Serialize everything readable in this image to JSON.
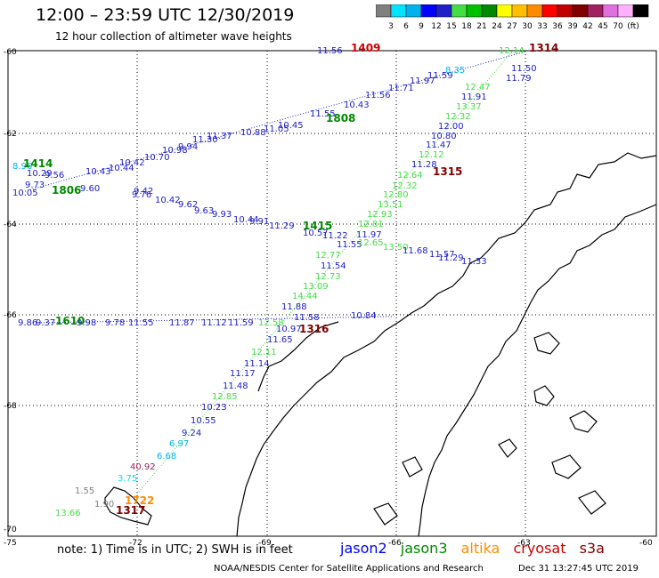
{
  "title": "12:00 – 23:59 UTC 12/30/2019",
  "subtitle": "12 hour collection of altimeter wave heights",
  "colorbar": {
    "colors": [
      "#808080",
      "#00e5ff",
      "#00b2ee",
      "#0000ff",
      "#2020c8",
      "#44dd44",
      "#00c000",
      "#008800",
      "#ffff00",
      "#ffc000",
      "#ff8c00",
      "#ff0000",
      "#c00000",
      "#800000",
      "#a02060",
      "#e070e0",
      "#ffb0ff",
      "#000000"
    ],
    "labels": [
      "3",
      "6",
      "9",
      "12",
      "15",
      "18",
      "21",
      "24",
      "27",
      "30",
      "33",
      "36",
      "39",
      "42",
      "45",
      "70",
      "(ft)"
    ]
  },
  "axes": {
    "y_ticks": [
      "-60",
      "-62",
      "-64",
      "-66",
      "-68",
      "-70"
    ],
    "x_ticks": [
      "-75",
      "-72",
      "-69",
      "-66",
      "-63",
      "-60"
    ]
  },
  "time_labels": [
    {
      "text": "1409",
      "color": "#cc0000"
    },
    {
      "text": "1314",
      "color": "#800000"
    },
    {
      "text": "1808",
      "color": "#008800"
    },
    {
      "text": "1414",
      "color": "#008800"
    },
    {
      "text": "1806",
      "color": "#008800"
    },
    {
      "text": "1315",
      "color": "#800000"
    },
    {
      "text": "1415",
      "color": "#008800"
    },
    {
      "text": "1610",
      "color": "#008800"
    },
    {
      "text": "1316",
      "color": "#800000"
    },
    {
      "text": "1722",
      "color": "#ff8c00"
    },
    {
      "text": "1317",
      "color": "#800000"
    }
  ],
  "wave_labels": [
    {
      "text": "11.56",
      "color": "#2020c8"
    },
    {
      "text": "12.14",
      "color": "#44dd44"
    },
    {
      "text": "11.50",
      "color": "#2020c8"
    },
    {
      "text": "11.79",
      "color": "#2020c8"
    },
    {
      "text": "12.47",
      "color": "#44dd44"
    },
    {
      "text": "11.91",
      "color": "#2020c8"
    },
    {
      "text": "13.37",
      "color": "#44dd44"
    },
    {
      "text": "12.32",
      "color": "#44dd44"
    },
    {
      "text": "12.00",
      "color": "#2020c8"
    },
    {
      "text": "10.80",
      "color": "#2020c8"
    },
    {
      "text": "11.47",
      "color": "#2020c8"
    },
    {
      "text": "12.12",
      "color": "#44dd44"
    },
    {
      "text": "11.28",
      "color": "#2020c8"
    },
    {
      "text": "12.64",
      "color": "#44dd44"
    },
    {
      "text": "12.32",
      "color": "#44dd44"
    },
    {
      "text": "12.80",
      "color": "#44dd44"
    },
    {
      "text": "13.51",
      "color": "#44dd44"
    },
    {
      "text": "12.93",
      "color": "#44dd44"
    },
    {
      "text": "12.81",
      "color": "#44dd44"
    },
    {
      "text": "11.97",
      "color": "#2020c8"
    },
    {
      "text": "11.55",
      "color": "#2020c8"
    },
    {
      "text": "12.65",
      "color": "#44dd44"
    },
    {
      "text": "13.50",
      "color": "#44dd44"
    },
    {
      "text": "11.68",
      "color": "#2020c8"
    },
    {
      "text": "11.57",
      "color": "#2020c8"
    },
    {
      "text": "11.29",
      "color": "#2020c8"
    },
    {
      "text": "11.33",
      "color": "#2020c8"
    },
    {
      "text": "12.77",
      "color": "#44dd44"
    },
    {
      "text": "11.54",
      "color": "#2020c8"
    },
    {
      "text": "12.73",
      "color": "#44dd44"
    },
    {
      "text": "13.09",
      "color": "#44dd44"
    },
    {
      "text": "14.44",
      "color": "#44dd44"
    },
    {
      "text": "11.88",
      "color": "#2020c8"
    },
    {
      "text": "10.97",
      "color": "#2020c8"
    },
    {
      "text": "11.65",
      "color": "#2020c8"
    },
    {
      "text": "12.11",
      "color": "#44dd44"
    },
    {
      "text": "11.14",
      "color": "#2020c8"
    },
    {
      "text": "11.17",
      "color": "#2020c8"
    },
    {
      "text": "11.48",
      "color": "#2020c8"
    },
    {
      "text": "12.85",
      "color": "#44dd44"
    },
    {
      "text": "10.23",
      "color": "#2020c8"
    },
    {
      "text": "10.55",
      "color": "#2020c8"
    },
    {
      "text": "9.24",
      "color": "#2020c8"
    },
    {
      "text": "6.97",
      "color": "#00b2ee"
    },
    {
      "text": "6.68",
      "color": "#00b2ee"
    },
    {
      "text": "40.92",
      "color": "#a02060"
    },
    {
      "text": "3.75",
      "color": "#00e5ff"
    },
    {
      "text": "1.55",
      "color": "#808080"
    },
    {
      "text": "1.90",
      "color": "#808080"
    },
    {
      "text": "13.66",
      "color": "#44dd44"
    },
    {
      "text": "8.96",
      "color": "#00b2ee"
    },
    {
      "text": "10.05",
      "color": "#2020c8"
    },
    {
      "text": "10.29",
      "color": "#2020c8"
    },
    {
      "text": "9.56",
      "color": "#2020c8"
    },
    {
      "text": "9.73",
      "color": "#2020c8"
    },
    {
      "text": "9.60",
      "color": "#2020c8"
    },
    {
      "text": "10.43",
      "color": "#2020c8"
    },
    {
      "text": "10.44",
      "color": "#2020c8"
    },
    {
      "text": "10.42",
      "color": "#2020c8"
    },
    {
      "text": "9.42",
      "color": "#2020c8"
    },
    {
      "text": "10.70",
      "color": "#2020c8"
    },
    {
      "text": "10.98",
      "color": "#2020c8"
    },
    {
      "text": "9.94",
      "color": "#2020c8"
    },
    {
      "text": "11.30",
      "color": "#2020c8"
    },
    {
      "text": "11.37",
      "color": "#2020c8"
    },
    {
      "text": "10.88",
      "color": "#2020c8"
    },
    {
      "text": "11.05",
      "color": "#2020c8"
    },
    {
      "text": "10.45",
      "color": "#2020c8"
    },
    {
      "text": "9.76",
      "color": "#2020c8"
    },
    {
      "text": "10.42",
      "color": "#2020c8"
    },
    {
      "text": "9.62",
      "color": "#2020c8"
    },
    {
      "text": "9.63",
      "color": "#2020c8"
    },
    {
      "text": "9.93",
      "color": "#2020c8"
    },
    {
      "text": "10.44",
      "color": "#2020c8"
    },
    {
      "text": "9.91",
      "color": "#2020c8"
    },
    {
      "text": "11.29",
      "color": "#2020c8"
    },
    {
      "text": "10.57",
      "color": "#2020c8"
    },
    {
      "text": "11.22",
      "color": "#2020c8"
    },
    {
      "text": "11.55",
      "color": "#2020c8"
    },
    {
      "text": "10.43",
      "color": "#2020c8"
    },
    {
      "text": "11.56",
      "color": "#2020c8"
    },
    {
      "text": "11.71",
      "color": "#2020c8"
    },
    {
      "text": "11.97",
      "color": "#2020c8"
    },
    {
      "text": "11.59",
      "color": "#2020c8"
    },
    {
      "text": "8.35",
      "color": "#00b2ee"
    },
    {
      "text": "9.86",
      "color": "#2020c8"
    },
    {
      "text": "9.37",
      "color": "#2020c8"
    },
    {
      "text": "9.98",
      "color": "#2020c8"
    },
    {
      "text": "9.78",
      "color": "#2020c8"
    },
    {
      "text": "11.55",
      "color": "#2020c8"
    },
    {
      "text": "11.87",
      "color": "#2020c8"
    },
    {
      "text": "11.12",
      "color": "#2020c8"
    },
    {
      "text": "11.59",
      "color": "#2020c8"
    },
    {
      "text": "12.58",
      "color": "#44dd44"
    },
    {
      "text": "11.58",
      "color": "#2020c8"
    },
    {
      "text": "10.84",
      "color": "#2020c8"
    }
  ],
  "note": "note:  1) Time is in UTC;  2) SWH is in feet",
  "sources": [
    {
      "text": "jason2",
      "color": "#0000ff"
    },
    {
      "text": "jason3",
      "color": "#008800"
    },
    {
      "text": "altika",
      "color": "#ff8c00"
    },
    {
      "text": "cryosat",
      "color": "#cc0000"
    },
    {
      "text": "s3a",
      "color": "#800000"
    }
  ],
  "footer": {
    "left": "NOAA/NESDIS Center for Satellite Applications and Research",
    "right": "Dec 31 13:27:45 UTC 2019"
  }
}
